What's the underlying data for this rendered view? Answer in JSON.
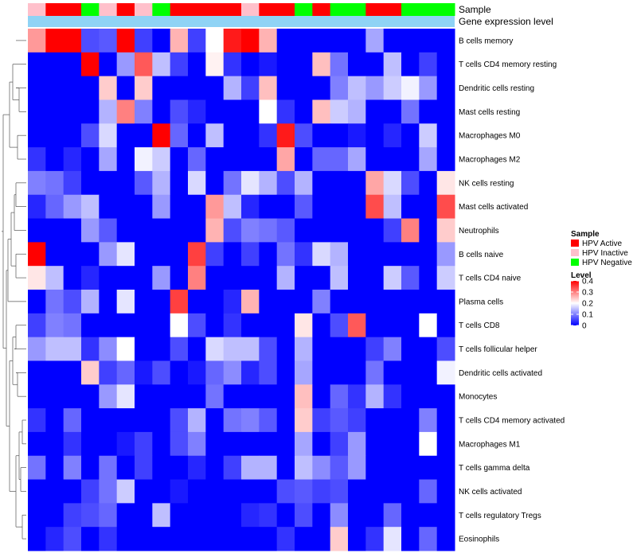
{
  "chart_data": {
    "type": "heatmap",
    "annotation_labels": [
      "Sample",
      "Gene expression level"
    ],
    "sample_colors": {
      "HPV Active": "#ff0000",
      "HPV Inactive": "#ffc0cb",
      "HPV Negative": "#00ff00"
    },
    "sample_groups": [
      "HPV Inactive",
      "HPV Active",
      "HPV Active",
      "HPV Negative",
      "HPV Inactive",
      "HPV Active",
      "HPV Inactive",
      "HPV Negative",
      "HPV Active",
      "HPV Active",
      "HPV Active",
      "HPV Active",
      "HPV Inactive",
      "HPV Active",
      "HPV Active",
      "HPV Negative",
      "HPV Active",
      "HPV Negative",
      "HPV Negative",
      "HPV Active",
      "HPV Active",
      "HPV Negative",
      "HPV Negative",
      "HPV Negative"
    ],
    "rows": [
      "B cells memory",
      "T cells CD4 memory resting",
      "Dendritic cells resting",
      "Mast cells resting",
      "Macrophages M0",
      "Macrophages M2",
      "NK cells resting",
      "Mast cells activated",
      "Neutrophils",
      "B cells naive",
      "T cells CD4 naive",
      "Plasma cells",
      "T cells CD8",
      "T cells follicular helper",
      "Dendritic cells activated",
      "Monocytes",
      "T cells CD4 memory activated",
      "Macrophages M1",
      "T cells gamma delta",
      "NK cells activated",
      "T cells regulatory  Tregs",
      "Eosinophils"
    ],
    "values": [
      [
        0.28,
        0.4,
        0.4,
        0.06,
        0.07,
        0.4,
        0.05,
        0.0,
        0.26,
        0.05,
        0.2,
        0.38,
        0.4,
        0.26,
        0.0,
        0.0,
        0.0,
        0.0,
        0.0,
        0.13,
        0.0,
        0.0,
        0.0,
        0.0
      ],
      [
        0.0,
        0.0,
        0.0,
        0.4,
        0.0,
        0.12,
        0.33,
        0.15,
        0.05,
        0.0,
        0.21,
        0.04,
        0.0,
        0.02,
        0.0,
        0.0,
        0.25,
        0.09,
        0.0,
        0.0,
        0.15,
        0.0,
        0.05,
        0.0
      ],
      [
        0.0,
        0.0,
        0.0,
        0.0,
        0.24,
        0.0,
        0.24,
        0.0,
        0.0,
        0.0,
        0.0,
        0.14,
        0.05,
        0.25,
        0.0,
        0.0,
        0.0,
        0.1,
        0.15,
        0.12,
        0.16,
        0.19,
        0.12,
        0.0
      ],
      [
        0.0,
        0.0,
        0.0,
        0.0,
        0.14,
        0.3,
        0.1,
        0.0,
        0.06,
        0.03,
        0.0,
        0.0,
        0.0,
        0.2,
        0.04,
        0.0,
        0.25,
        0.16,
        0.14,
        0.0,
        0.0,
        0.09,
        0.0,
        0.0
      ],
      [
        0.0,
        0.0,
        0.0,
        0.06,
        0.17,
        0.0,
        0.0,
        0.4,
        0.08,
        0.0,
        0.15,
        0.0,
        0.0,
        0.04,
        0.38,
        0.06,
        0.0,
        0.0,
        0.02,
        0.0,
        0.03,
        0.0,
        0.16,
        0.0
      ],
      [
        0.04,
        0.0,
        0.03,
        0.0,
        0.13,
        0.0,
        0.19,
        0.16,
        0.0,
        0.08,
        0.0,
        0.0,
        0.0,
        0.0,
        0.27,
        0.0,
        0.08,
        0.08,
        0.13,
        0.0,
        0.0,
        0.0,
        0.13,
        0.0
      ],
      [
        0.1,
        0.09,
        0.05,
        0.0,
        0.0,
        0.0,
        0.07,
        0.14,
        0.0,
        0.17,
        0.0,
        0.09,
        0.18,
        0.14,
        0.06,
        0.14,
        0.0,
        0.0,
        0.0,
        0.27,
        0.17,
        0.06,
        0.0,
        0.22
      ],
      [
        0.03,
        0.08,
        0.12,
        0.15,
        0.0,
        0.0,
        0.0,
        0.12,
        0.0,
        0.0,
        0.28,
        0.15,
        0.03,
        0.0,
        0.0,
        0.07,
        0.0,
        0.0,
        0.0,
        0.34,
        0.15,
        0.0,
        0.0,
        0.34
      ],
      [
        0.0,
        0.0,
        0.0,
        0.12,
        0.07,
        0.0,
        0.0,
        0.0,
        0.0,
        0.0,
        0.26,
        0.06,
        0.1,
        0.09,
        0.07,
        0.0,
        0.0,
        0.0,
        0.0,
        0.0,
        0.05,
        0.3,
        0.0,
        0.24
      ],
      [
        0.4,
        0.0,
        0.0,
        0.0,
        0.12,
        0.18,
        0.0,
        0.0,
        0.0,
        0.35,
        0.05,
        0.0,
        0.05,
        0.0,
        0.09,
        0.04,
        0.17,
        0.14,
        0.0,
        0.0,
        0.0,
        0.0,
        0.0,
        0.12
      ],
      [
        0.22,
        0.15,
        0.0,
        0.03,
        0.0,
        0.0,
        0.0,
        0.12,
        0.0,
        0.3,
        0.0,
        0.0,
        0.0,
        0.0,
        0.14,
        0.0,
        0.0,
        0.15,
        0.0,
        0.0,
        0.16,
        0.07,
        0.0,
        0.16
      ],
      [
        0.0,
        0.09,
        0.06,
        0.14,
        0.0,
        0.18,
        0.0,
        0.0,
        0.35,
        0.0,
        0.0,
        0.03,
        0.26,
        0.0,
        0.0,
        0.0,
        0.1,
        0.0,
        0.0,
        0.0,
        0.0,
        0.0,
        0.0,
        0.0
      ],
      [
        0.05,
        0.1,
        0.09,
        0.0,
        0.0,
        0.0,
        0.0,
        0.0,
        0.2,
        0.06,
        0.0,
        0.04,
        0.0,
        0.0,
        0.0,
        0.22,
        0.0,
        0.06,
        0.33,
        0.0,
        0.0,
        0.0,
        0.2,
        0.0
      ],
      [
        0.12,
        0.15,
        0.15,
        0.04,
        0.11,
        0.2,
        0.0,
        0.0,
        0.06,
        0.0,
        0.17,
        0.15,
        0.15,
        0.06,
        0.0,
        0.14,
        0.0,
        0.0,
        0.0,
        0.05,
        0.1,
        0.0,
        0.0,
        0.06
      ],
      [
        0.0,
        0.0,
        0.0,
        0.24,
        0.05,
        0.08,
        0.02,
        0.06,
        0.0,
        0.02,
        0.08,
        0.11,
        0.03,
        0.06,
        0.0,
        0.13,
        0.0,
        0.0,
        0.0,
        0.09,
        0.0,
        0.0,
        0.0,
        0.19
      ],
      [
        0.0,
        0.0,
        0.0,
        0.0,
        0.12,
        0.18,
        0.0,
        0.0,
        0.0,
        0.0,
        0.09,
        0.0,
        0.0,
        0.0,
        0.0,
        0.25,
        0.0,
        0.08,
        0.04,
        0.14,
        0.04,
        0.0,
        0.0,
        0.0
      ],
      [
        0.04,
        0.0,
        0.08,
        0.0,
        0.0,
        0.0,
        0.0,
        0.0,
        0.06,
        0.14,
        0.0,
        0.09,
        0.1,
        0.07,
        0.0,
        0.24,
        0.05,
        0.07,
        0.05,
        0.0,
        0.0,
        0.0,
        0.1,
        0.0
      ],
      [
        0.0,
        0.0,
        0.04,
        0.0,
        0.0,
        0.02,
        0.05,
        0.0,
        0.06,
        0.1,
        0.0,
        0.0,
        0.0,
        0.0,
        0.0,
        0.13,
        0.0,
        0.05,
        0.12,
        0.0,
        0.0,
        0.0,
        0.2,
        0.0
      ],
      [
        0.09,
        0.0,
        0.1,
        0.0,
        0.09,
        0.0,
        0.05,
        0.0,
        0.0,
        0.03,
        0.0,
        0.05,
        0.14,
        0.14,
        0.0,
        0.15,
        0.11,
        0.07,
        0.12,
        0.0,
        0.0,
        0.0,
        0.0,
        0.0
      ],
      [
        0.0,
        0.0,
        0.0,
        0.05,
        0.09,
        0.16,
        0.0,
        0.0,
        0.02,
        0.0,
        0.0,
        0.0,
        0.0,
        0.0,
        0.06,
        0.07,
        0.05,
        0.06,
        0.0,
        0.0,
        0.0,
        0.0,
        0.08,
        0.0
      ],
      [
        0.0,
        0.0,
        0.05,
        0.06,
        0.08,
        0.0,
        0.0,
        0.15,
        0.0,
        0.0,
        0.0,
        0.0,
        0.03,
        0.04,
        0.0,
        0.06,
        0.0,
        0.11,
        0.0,
        0.0,
        0.08,
        0.0,
        0.0,
        0.0
      ],
      [
        0.0,
        0.03,
        0.06,
        0.0,
        0.04,
        0.0,
        0.0,
        0.0,
        0.0,
        0.0,
        0.0,
        0.0,
        0.0,
        0.0,
        0.04,
        0.0,
        0.0,
        0.24,
        0.0,
        0.04,
        0.18,
        0.0,
        0.08,
        0.0
      ]
    ],
    "legend": {
      "sample_title": "Sample",
      "sample_entries": [
        "HPV Active",
        "HPV Inactive",
        "HPV Negative"
      ],
      "level_title": "Level",
      "level_ticks": [
        "0.4",
        "0.3",
        "0.2",
        "0.1",
        "0"
      ],
      "level_tick_values": [
        0.4,
        0.3,
        0.2,
        0.1,
        0.0
      ]
    },
    "color_scale": {
      "min": 0.0,
      "mid": 0.2,
      "max": 0.4,
      "low": "#0000ff",
      "midcolor": "#ffffff",
      "high": "#ff0000"
    }
  }
}
